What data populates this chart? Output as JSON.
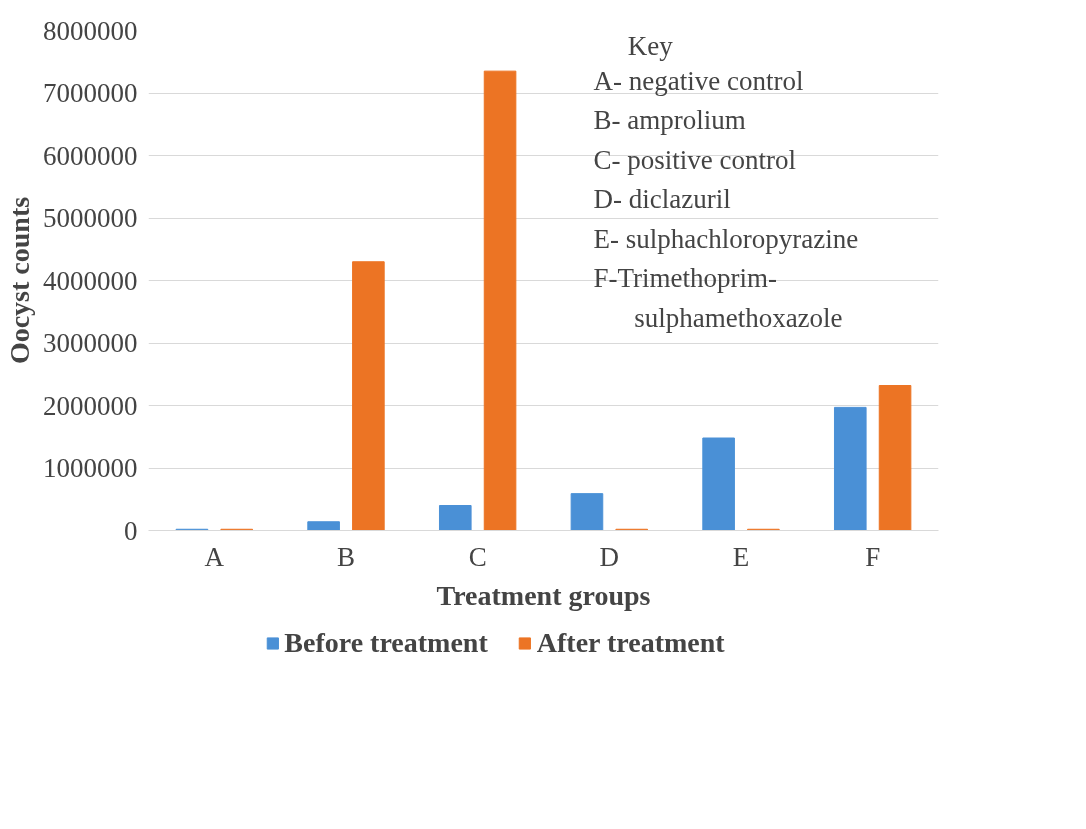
{
  "chart_data": {
    "type": "bar",
    "xlabel": "Treatment groups",
    "ylabel": "Oocyst counts",
    "categories": [
      "A",
      "B",
      "C",
      "D",
      "E",
      "F"
    ],
    "series": [
      {
        "name": "Before treatment",
        "color": "#4a90d6",
        "values": [
          20000,
          140000,
          400000,
          590000,
          1480000,
          1970000
        ]
      },
      {
        "name": "After treatment",
        "color": "#ec7424",
        "values": [
          20000,
          4300000,
          7350000,
          20000,
          20000,
          2320000
        ]
      }
    ],
    "ylim": [
      0,
      8000000
    ],
    "yticks": [
      0,
      1000000,
      2000000,
      3000000,
      4000000,
      5000000,
      6000000,
      7000000,
      8000000
    ],
    "grid": "y",
    "legend": "bottom",
    "annotations": [
      "Key",
      "A- negative control",
      "B- amprolium",
      "C- positive control",
      "D- diclazuril",
      "E- sulphachloropyrazine",
      "F-Trimethoprim-",
      "sulphamethoxazole"
    ]
  }
}
